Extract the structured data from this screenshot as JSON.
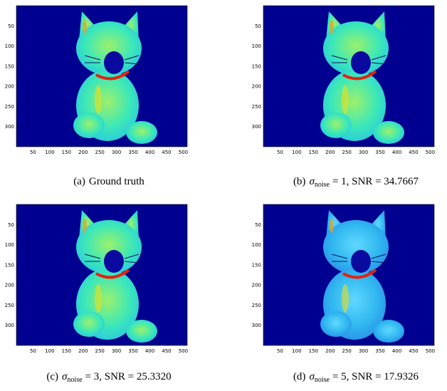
{
  "figure": {
    "xticks": [
      50,
      100,
      150,
      200,
      250,
      300,
      350,
      400,
      450,
      500
    ],
    "yticks": [
      50,
      100,
      150,
      200,
      250,
      300
    ],
    "xlim": [
      0,
      512
    ],
    "ylim": [
      0,
      350
    ],
    "panels": [
      {
        "tag": "(a)",
        "text": "Ground truth"
      },
      {
        "tag": "(b)",
        "sigma_symbol": "σ",
        "sigma_sub": "noise",
        "text": "= 1, SNR = 34.7667"
      },
      {
        "tag": "(c)",
        "sigma_symbol": "σ",
        "sigma_sub": "noise",
        "text": "= 3, SNR = 25.3320"
      },
      {
        "tag": "(d)",
        "sigma_symbol": "σ",
        "sigma_sub": "noise",
        "text": "= 5, SNR = 17.9326"
      }
    ]
  }
}
